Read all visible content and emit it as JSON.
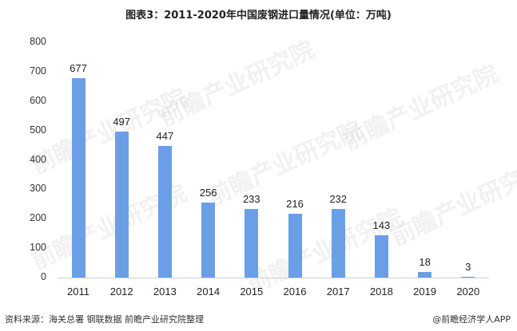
{
  "title": "图表3：2011-2020年中国废钢进口量情况(单位：万吨)",
  "chart_data": {
    "type": "bar",
    "title": "图表3：2011-2020年中国废钢进口量情况(单位：万吨)",
    "xlabel": "",
    "ylabel": "万吨",
    "categories": [
      "2011",
      "2012",
      "2013",
      "2014",
      "2015",
      "2016",
      "2017",
      "2018",
      "2019",
      "2020"
    ],
    "values": [
      677,
      497,
      447,
      256,
      233,
      216,
      232,
      143,
      18,
      3
    ],
    "ylim": [
      0,
      800
    ],
    "yticks": [
      0,
      100,
      200,
      300,
      400,
      500,
      600,
      700,
      800
    ],
    "grid": false,
    "legend": null,
    "bar_color": "#6a9fe8",
    "data_labels": true
  },
  "footer": {
    "source": "资料来源：海关总署 钢联数据 前瞻产业研究院整理",
    "credit": "@前瞻经济学人APP"
  },
  "watermark": "前瞻产业研究院"
}
